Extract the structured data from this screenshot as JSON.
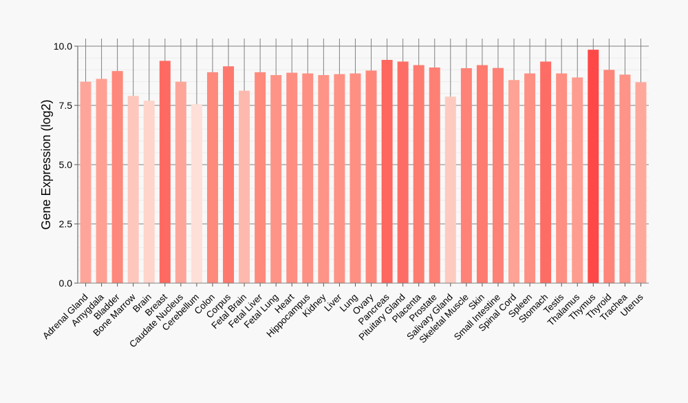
{
  "chart_data": {
    "type": "bar",
    "title": "",
    "xlabel": "",
    "ylabel": "Gene Expression (log2)",
    "ylim": [
      0,
      10
    ],
    "yticks": [
      "0.0",
      "2.5",
      "5.0",
      "7.5",
      "10.0"
    ],
    "grid": true,
    "categories": [
      "Adrenal Gland",
      "Amygdala",
      "Bladder",
      "Bone Marrow",
      "Brain",
      "Breast",
      "Caudate Nucleus",
      "Cerebellum",
      "Colon",
      "Corpus",
      "Fetal Brain",
      "Fetal Liver",
      "Fetal Lung",
      "Heart",
      "Hippocampus",
      "Kidney",
      "Liver",
      "Lung",
      "Ovary",
      "Pancreas",
      "Pituitary Gland",
      "Placenta",
      "Prostate",
      "Salivary Gland",
      "Skeletal Muscle",
      "Skin",
      "Small Intestine",
      "Spinal Cord",
      "Spleen",
      "Stomach",
      "Testis",
      "Thalamus",
      "Thymus",
      "Thyroid",
      "Trachea",
      "Uterus"
    ],
    "values": [
      8.5,
      8.62,
      8.95,
      7.9,
      7.7,
      9.38,
      8.5,
      7.55,
      8.9,
      9.15,
      8.12,
      8.9,
      8.78,
      8.88,
      8.85,
      8.78,
      8.82,
      8.85,
      8.97,
      9.42,
      9.35,
      9.2,
      9.1,
      7.87,
      9.07,
      9.2,
      9.08,
      8.57,
      8.85,
      9.35,
      8.85,
      8.68,
      9.85,
      9.0,
      8.8,
      8.48
    ],
    "colors": [
      "#fea59a",
      "#fea194",
      "#fe887b",
      "#fec7bd",
      "#fed4cb",
      "#fe6a62",
      "#fea59a",
      "#fee0d8",
      "#fe8a7c",
      "#fe786e",
      "#feb9ae",
      "#fe8a7c",
      "#fe9487",
      "#fe8e81",
      "#fe8f83",
      "#fe9487",
      "#fe9285",
      "#fe8f83",
      "#fe877a",
      "#fe665e",
      "#fe6d65",
      "#fe7b70",
      "#fe8075",
      "#fecabf",
      "#fe8277",
      "#fe7b70",
      "#fe8176",
      "#fea295",
      "#fe8f83",
      "#fe6d65",
      "#fe8f83",
      "#fe9c8f",
      "#fe4848",
      "#fe8579",
      "#fe9387",
      "#fea89c"
    ]
  }
}
